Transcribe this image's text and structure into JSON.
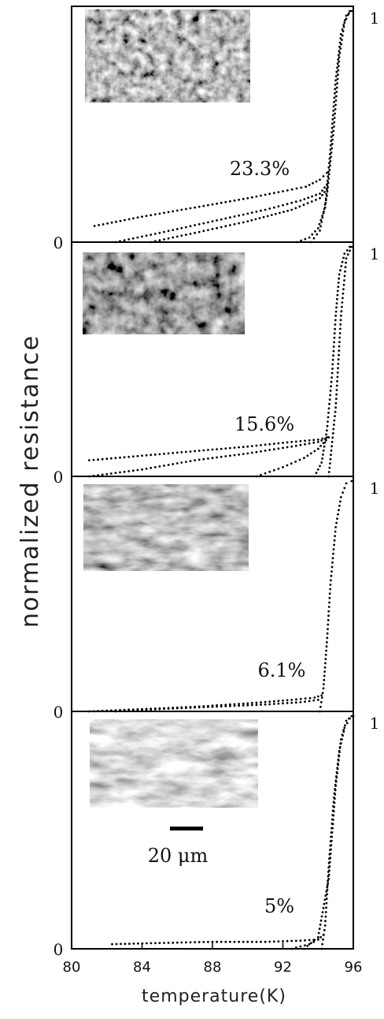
{
  "chart_data": {
    "type": "scatter",
    "xlabel": "temperature(K)",
    "ylabel": "normalized resistance",
    "xlim": [
      80,
      96
    ],
    "x_ticks": [
      "80",
      "84",
      "88",
      "92",
      "96"
    ],
    "scale_bar": "20 μm",
    "panels": [
      {
        "label": "23.3%",
        "ylim": [
          0,
          1
        ],
        "y_ticks": [
          "0",
          "1"
        ],
        "micrograph": "micrograph-coarse-grains",
        "series": [
          {
            "x": [
              81.3,
              84,
              87,
              90,
              92,
              93.3,
              94.1,
              94.5
            ],
            "y": [
              0.07,
              0.11,
              0.15,
              0.19,
              0.22,
              0.24,
              0.27,
              0.3
            ]
          },
          {
            "x": [
              82.5,
              85,
              88,
              91,
              93,
              94.1,
              94.5
            ],
            "y": [
              0.0,
              0.04,
              0.09,
              0.14,
              0.18,
              0.21,
              0.25
            ]
          },
          {
            "x": [
              84.5,
              87,
              90,
              92.5,
              94.1,
              94.5
            ],
            "y": [
              0.0,
              0.04,
              0.09,
              0.14,
              0.19,
              0.23
            ]
          },
          {
            "x": [
              92.8,
              93.5,
              94.0,
              94.4,
              94.7,
              95.0,
              95.3,
              95.6,
              95.9
            ],
            "y": [
              0.0,
              0.02,
              0.06,
              0.15,
              0.4,
              0.7,
              0.9,
              0.98,
              1.0
            ]
          },
          {
            "x": [
              93.6,
              94.1,
              94.5,
              94.9,
              95.2,
              95.5,
              95.8
            ],
            "y": [
              0.0,
              0.05,
              0.2,
              0.5,
              0.8,
              0.95,
              1.0
            ]
          }
        ]
      },
      {
        "label": "15.6%",
        "ylim": [
          0,
          1
        ],
        "y_ticks": [
          "0",
          "1"
        ],
        "micrograph": "micrograph-dark-grains",
        "series": [
          {
            "x": [
              81.0,
              84,
              87,
              90,
              92.5,
              94.0,
              94.5
            ],
            "y": [
              0.07,
              0.09,
              0.11,
              0.13,
              0.15,
              0.16,
              0.17
            ]
          },
          {
            "x": [
              81.0,
              84,
              87,
              90,
              92.5,
              94.0,
              94.6
            ],
            "y": [
              0.0,
              0.03,
              0.07,
              0.1,
              0.13,
              0.15,
              0.17
            ]
          },
          {
            "x": [
              90.5,
              92.0,
              93.2,
              94.0,
              94.6
            ],
            "y": [
              0.0,
              0.04,
              0.08,
              0.12,
              0.17
            ]
          },
          {
            "x": [
              93.8,
              94.2,
              94.5,
              94.8,
              95.0,
              95.2,
              95.5,
              95.8
            ],
            "y": [
              0.0,
              0.06,
              0.2,
              0.45,
              0.7,
              0.88,
              0.97,
              1.0
            ]
          },
          {
            "x": [
              94.6,
              95.0,
              95.3,
              95.6,
              95.9
            ],
            "y": [
              0.0,
              0.3,
              0.7,
              0.95,
              1.0
            ]
          }
        ]
      },
      {
        "label": "6.1%",
        "ylim": [
          0,
          1
        ],
        "y_ticks": [
          "0",
          "1"
        ],
        "micrograph": "micrograph-elongated-grains",
        "series": [
          {
            "x": [
              81.0,
              84,
              87,
              90,
              92.5,
              93.8,
              94.2
            ],
            "y": [
              0.0,
              0.01,
              0.02,
              0.035,
              0.05,
              0.06,
              0.07
            ]
          },
          {
            "x": [
              82.5,
              85,
              88,
              91,
              93.0,
              94.0
            ],
            "y": [
              0.0,
              0.01,
              0.02,
              0.03,
              0.04,
              0.05
            ]
          },
          {
            "x": [
              94.1,
              94.3,
              94.5,
              94.7,
              95.0,
              95.3,
              95.6,
              95.9
            ],
            "y": [
              0.0,
              0.1,
              0.3,
              0.55,
              0.8,
              0.93,
              0.99,
              1.0
            ]
          }
        ]
      },
      {
        "label": "5%",
        "ylim": [
          0,
          1
        ],
        "y_ticks": [
          "0",
          "1"
        ],
        "micrograph": "micrograph-large-elongated-grains",
        "series": [
          {
            "x": [
              82.3,
              85,
              88,
              91,
              93.0,
              94.0
            ],
            "y": [
              0.02,
              0.025,
              0.03,
              0.03,
              0.035,
              0.04
            ]
          },
          {
            "x": [
              92.5,
              93.5,
              94.0,
              94.3
            ],
            "y": [
              0.0,
              0.02,
              0.04,
              0.06
            ]
          },
          {
            "x": [
              94.2,
              94.4,
              94.6,
              94.9,
              95.2,
              95.5,
              95.8,
              96.0
            ],
            "y": [
              0.0,
              0.1,
              0.35,
              0.65,
              0.85,
              0.95,
              0.99,
              1.0
            ]
          },
          {
            "x": [
              93.2,
              94.0,
              94.6,
              95.0,
              95.3,
              95.6,
              95.9
            ],
            "y": [
              0.0,
              0.05,
              0.3,
              0.7,
              0.9,
              0.98,
              1.0
            ]
          }
        ]
      }
    ]
  }
}
